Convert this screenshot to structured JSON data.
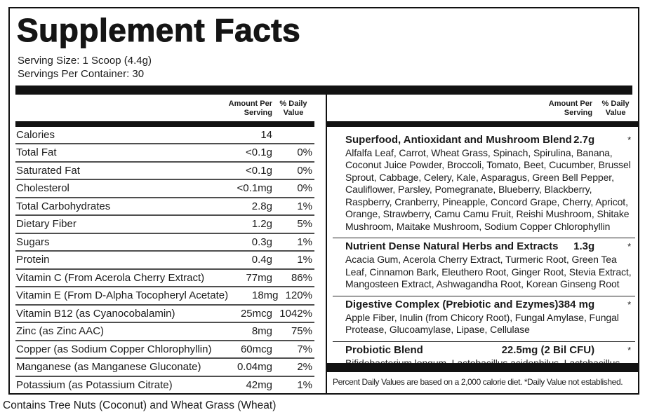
{
  "header": {
    "title": "Supplement Facts",
    "serving_size": "Serving Size: 1 Scoop (4.4g)",
    "servings_per_container": "Servings Per Container: 30"
  },
  "column_headers": {
    "amount_line1": "Amount Per",
    "amount_line2": "Serving",
    "dv_line1": "% Daily",
    "dv_line2": "Value"
  },
  "nutrients": [
    {
      "name": "Calories",
      "amount": "14",
      "dv": ""
    },
    {
      "name": "Total Fat",
      "amount": "<0.1g",
      "dv": "0%"
    },
    {
      "name": "Saturated Fat",
      "amount": "<0.1g",
      "dv": "0%"
    },
    {
      "name": "Cholesterol",
      "amount": "<0.1mg",
      "dv": "0%"
    },
    {
      "name": "Total Carbohydrates",
      "amount": "2.8g",
      "dv": "1%"
    },
    {
      "name": "Dietary Fiber",
      "amount": "1.2g",
      "dv": "5%"
    },
    {
      "name": "Sugars",
      "amount": "0.3g",
      "dv": "1%"
    },
    {
      "name": "Protein",
      "amount": "0.4g",
      "dv": "1%"
    },
    {
      "name": "Vitamin C (From Acerola Cherry Extract)",
      "amount": "77mg",
      "dv": "86%"
    },
    {
      "name": "Vitamin E (From D-Alpha Tocopheryl Acetate)",
      "amount": "18mg",
      "dv": "120%"
    },
    {
      "name": "Vitamin B12 (as Cyanocobalamin)",
      "amount": "25mcg",
      "dv": "1042%"
    },
    {
      "name": "Zinc (as Zinc AAC)",
      "amount": "8mg",
      "dv": "75%"
    },
    {
      "name": "Copper (as Sodium Copper Chlorophyllin)",
      "amount": "60mcg",
      "dv": "7%"
    },
    {
      "name": "Manganese (as Manganese Gluconate)",
      "amount": "0.04mg",
      "dv": "2%"
    },
    {
      "name": "Potassium (as Potassium Citrate)",
      "amount": "42mg",
      "dv": "1%"
    }
  ],
  "blends": [
    {
      "name": "Superfood, Antioxidant and Mushroom Blend",
      "amount": "2.7g",
      "dv": "*",
      "ingredients": "Alfalfa Leaf, Carrot, Wheat Grass, Spinach, Spirulina, Banana, Coconut Juice Powder, Broccoli, Tomato, Beet, Cucumber, Brussel Sprout, Cabbage, Celery, Kale, Asparagus, Green Bell Pepper, Cauliflower, Parsley, Pomegranate, Blueberry, Blackberry, Raspberry, Cranberry, Pineapple, Concord Grape, Cherry, Apricot, Orange, Strawberry, Camu Camu Fruit, Reishi Mushroom, Shitake Mushroom, Maitake Mushroom, Sodium Copper Chlorophyllin"
    },
    {
      "name": "Nutrient Dense Natural Herbs and Extracts",
      "amount": "1.3g",
      "dv": "*",
      "ingredients": "Acacia Gum, Acerola Cherry Extract, Turmeric Root, Green Tea Leaf, Cinnamon Bark, Eleuthero Root, Ginger Root, Stevia Extract, Mangosteen Extract, Ashwagandha Root, Korean Ginseng Root"
    },
    {
      "name": "Digestive Complex (Prebiotic and Ezymes)",
      "amount": "384 mg",
      "dv": "*",
      "ingredients": "Apple Fiber, Inulin (from Chicory Root), Fungal Amylase, Fungal Protease, Glucoamylase, Lipase, Cellulase"
    },
    {
      "name": "Probiotic Blend",
      "amount": "22.5mg (2 Bil CFU)",
      "dv": "*",
      "ingredients": "Bifidobacterium longum, Lactobacillus acidophilus, Lactobacillus rhamnosus, Lactobacillus helveticus"
    }
  ],
  "footnote": "Percent Daily Values are based on a 2,000 calorie diet. *Daily Value not established.",
  "allergen": "Contains Tree Nuts (Coconut) and Wheat Grass (Wheat)",
  "colors": {
    "ink": "#1b1b1b",
    "bar": "#121212",
    "row_divider": "#4f4f4f"
  }
}
